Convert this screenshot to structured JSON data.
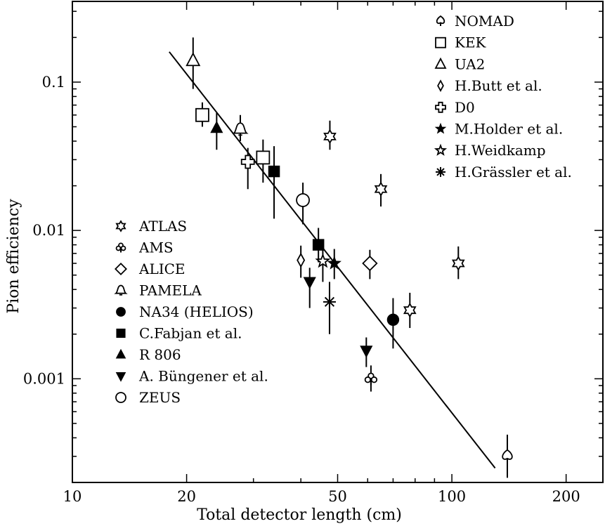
{
  "chart_data": {
    "type": "scatter",
    "title": "",
    "xlabel": "Total detector length (cm)",
    "ylabel": "Pion efficiency",
    "xscale": "log",
    "yscale": "log",
    "xlim": [
      10,
      250
    ],
    "ylim": [
      0.0002,
      0.35
    ],
    "x_ticks": [
      {
        "value": 10,
        "label": "10"
      },
      {
        "value": 20,
        "label": "20"
      },
      {
        "value": 50,
        "label": "50"
      },
      {
        "value": 100,
        "label": "100"
      },
      {
        "value": 200,
        "label": "200"
      }
    ],
    "y_ticks": [
      {
        "value": 0.001,
        "label": "0.001"
      },
      {
        "value": 0.01,
        "label": "0.01"
      },
      {
        "value": 0.1,
        "label": "0.1"
      }
    ],
    "grid": false,
    "legend_placement": [
      "top-right",
      "bottom-left"
    ],
    "legend_right": [
      {
        "name": "NOMAD",
        "marker": "spade"
      },
      {
        "name": "KEK",
        "marker": "square"
      },
      {
        "name": "UA2",
        "marker": "triangle"
      },
      {
        "name": "H.Butt et al.",
        "marker": "diamond-small"
      },
      {
        "name": "D0",
        "marker": "cross"
      },
      {
        "name": "M.Holder et al.",
        "marker": "star-filled"
      },
      {
        "name": "H.Weidkamp",
        "marker": "star-open"
      },
      {
        "name": "H.Grässler et al.",
        "marker": "asterisk"
      }
    ],
    "legend_left": [
      {
        "name": "ATLAS",
        "marker": "hexagram"
      },
      {
        "name": "AMS",
        "marker": "club"
      },
      {
        "name": "ALICE",
        "marker": "diamond"
      },
      {
        "name": "PAMELA",
        "marker": "bell"
      },
      {
        "name": "NA34 (HELIOS)",
        "marker": "circle-filled"
      },
      {
        "name": "C.Fabjan et al.",
        "marker": "square-filled"
      },
      {
        "name": "R 806",
        "marker": "triangle-filled"
      },
      {
        "name": "A. Büngener et al.",
        "marker": "triangle-down-filled"
      },
      {
        "name": "ZEUS",
        "marker": "circle"
      }
    ],
    "points": [
      {
        "series": "UA2",
        "marker": "triangle",
        "x": 20.8,
        "y": 0.14,
        "ylo": 0.09,
        "yhi": 0.2
      },
      {
        "series": "KEK",
        "marker": "square",
        "x": 22,
        "y": 0.06,
        "ylo": 0.05,
        "yhi": 0.073
      },
      {
        "series": "R 806",
        "marker": "triangle-filled",
        "x": 24,
        "y": 0.049,
        "ylo": 0.035,
        "yhi": 0.062
      },
      {
        "series": "PAMELA",
        "marker": "bell",
        "x": 27.7,
        "y": 0.048,
        "ylo": 0.04,
        "yhi": 0.06
      },
      {
        "series": "D0",
        "marker": "cross",
        "x": 29,
        "y": 0.029,
        "ylo": 0.019,
        "yhi": 0.036
      },
      {
        "series": "KEK",
        "marker": "square",
        "x": 31.8,
        "y": 0.031,
        "ylo": 0.021,
        "yhi": 0.041
      },
      {
        "series": "C.Fabjan et al.",
        "marker": "square-filled",
        "x": 34,
        "y": 0.025,
        "ylo": 0.012,
        "yhi": 0.037
      },
      {
        "series": "ZEUS",
        "marker": "circle",
        "x": 40.5,
        "y": 0.016,
        "ylo": 0.011,
        "yhi": 0.021
      },
      {
        "series": "ATLAS",
        "marker": "hexagram",
        "x": 47.7,
        "y": 0.043,
        "ylo": 0.035,
        "yhi": 0.055
      },
      {
        "series": "C.Fabjan et al.",
        "marker": "square-filled",
        "x": 44.5,
        "y": 0.008,
        "ylo": 0.0061,
        "yhi": 0.0104
      },
      {
        "series": "H.Butt et al.",
        "marker": "diamond-small",
        "x": 40,
        "y": 0.0063,
        "ylo": 0.0048,
        "yhi": 0.0079
      },
      {
        "series": "H.Weidkamp",
        "marker": "star-open",
        "x": 45.7,
        "y": 0.0062,
        "ylo": 0.0045,
        "yhi": 0.0078
      },
      {
        "series": "M.Holder et al.",
        "marker": "star-filled",
        "x": 49,
        "y": 0.006,
        "ylo": 0.0047,
        "yhi": 0.0075
      },
      {
        "series": "A. Büngener et al.",
        "marker": "triangle-down-filled",
        "x": 42.2,
        "y": 0.0045,
        "ylo": 0.003,
        "yhi": 0.0056
      },
      {
        "series": "H.Grässler et al.",
        "marker": "asterisk",
        "x": 47.6,
        "y": 0.0033,
        "ylo": 0.002,
        "yhi": 0.0045
      },
      {
        "series": "ALICE",
        "marker": "diamond",
        "x": 60.8,
        "y": 0.006,
        "ylo": 0.0047,
        "yhi": 0.0074
      },
      {
        "series": "ATLAS",
        "marker": "hexagram",
        "x": 65,
        "y": 0.019,
        "ylo": 0.0145,
        "yhi": 0.024
      },
      {
        "series": "ATLAS",
        "marker": "hexagram",
        "x": 77.5,
        "y": 0.0029,
        "ylo": 0.0022,
        "yhi": 0.0038
      },
      {
        "series": "NA34 (HELIOS)",
        "marker": "circle-filled",
        "x": 70,
        "y": 0.0025,
        "ylo": 0.0016,
        "yhi": 0.0035
      },
      {
        "series": "A. Büngener et al.",
        "marker": "triangle-down-filled",
        "x": 59.5,
        "y": 0.00155,
        "ylo": 0.0012,
        "yhi": 0.0019
      },
      {
        "series": "AMS",
        "marker": "club",
        "x": 61.2,
        "y": 0.001,
        "ylo": 0.00082,
        "yhi": 0.00123
      },
      {
        "series": "ATLAS",
        "marker": "hexagram",
        "x": 104,
        "y": 0.006,
        "ylo": 0.0047,
        "yhi": 0.0078
      },
      {
        "series": "NOMAD",
        "marker": "spade",
        "x": 140,
        "y": 0.0003,
        "ylo": 0.000215,
        "yhi": 0.00042
      }
    ],
    "fit_line": {
      "x1": 18,
      "y1": 0.16,
      "x2": 130,
      "y2": 0.00025
    }
  }
}
